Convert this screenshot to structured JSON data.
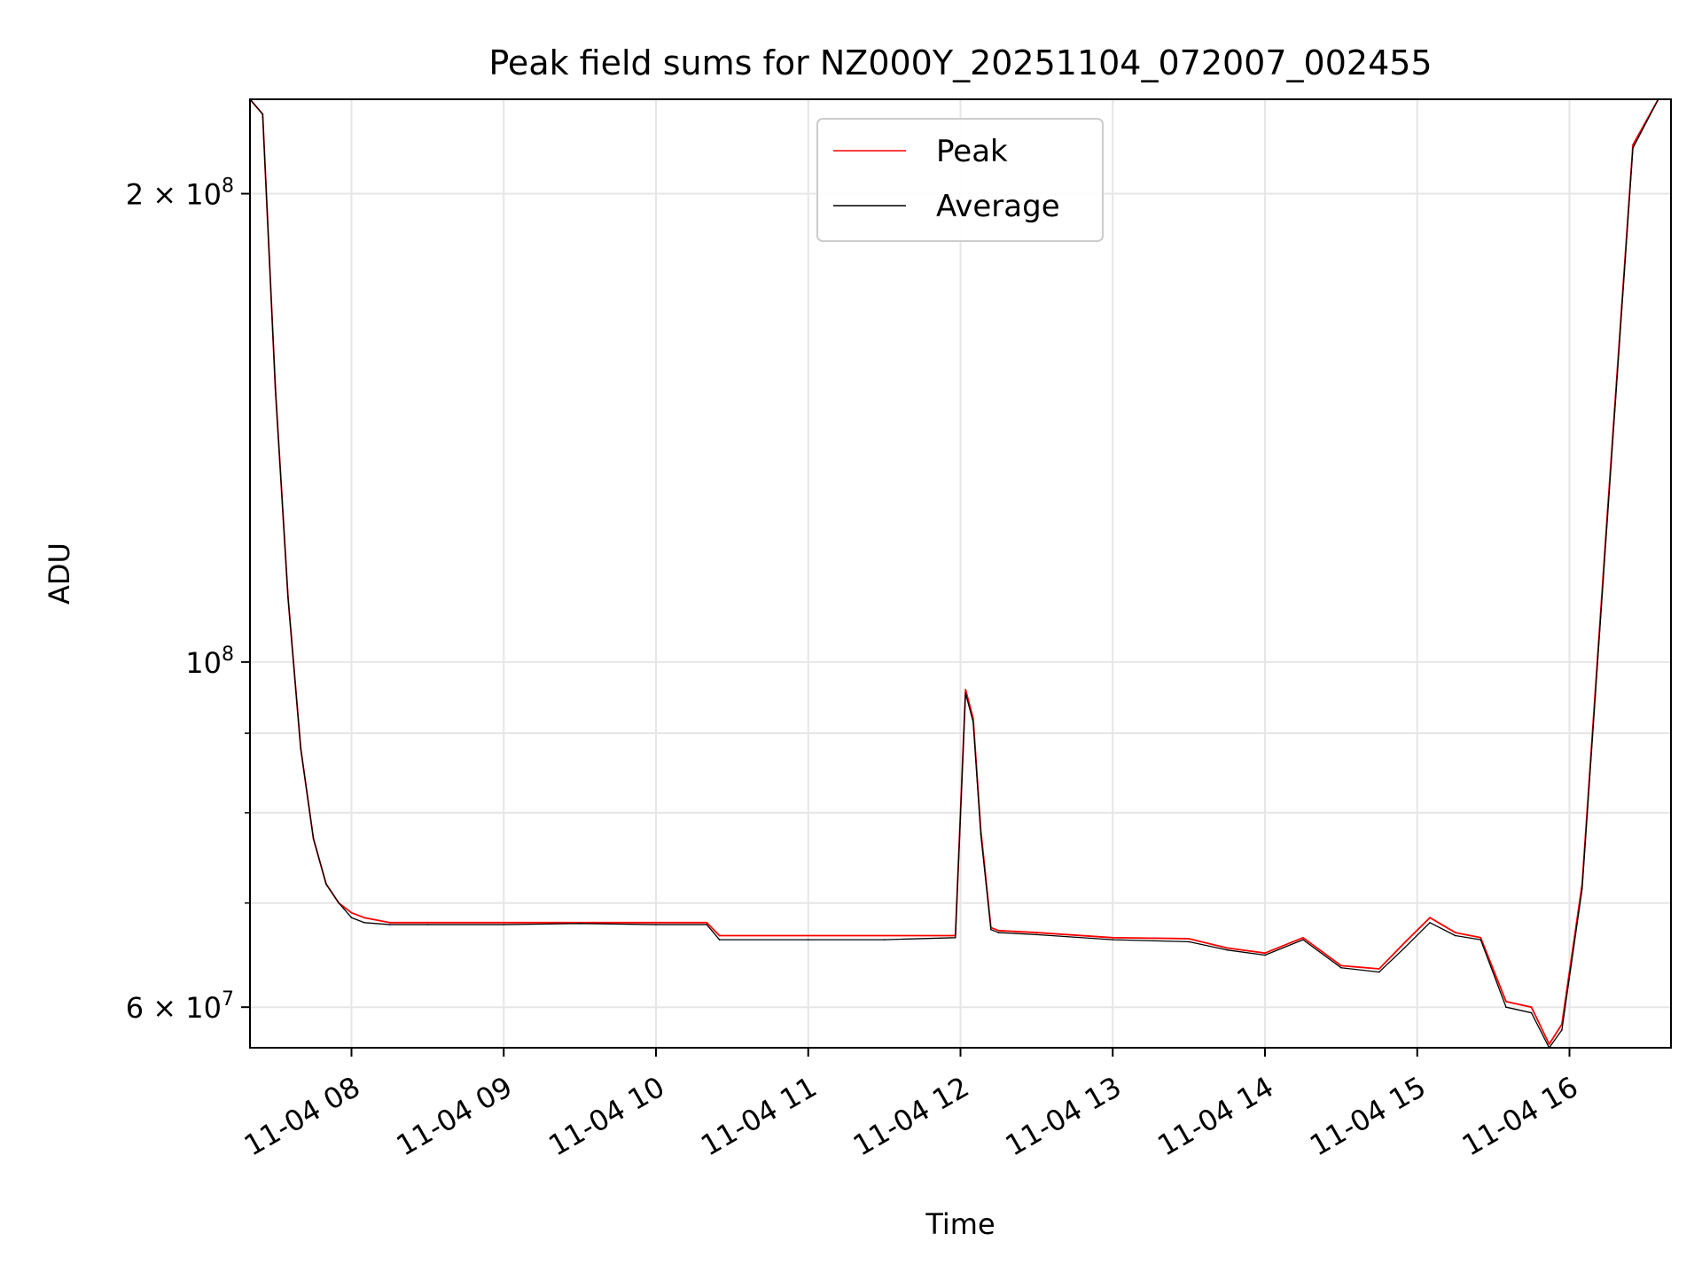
{
  "chart_data": {
    "type": "line",
    "title": "Peak field sums for NZ000Y_20251104_072007_002455",
    "xlabel": "Time",
    "ylabel": "ADU",
    "y_scale": "log",
    "x_range": [
      "2025-11-04 07:20",
      "2025-11-04 16:40"
    ],
    "ylim": [
      56500000,
      230000000
    ],
    "grid": true,
    "legend_position": "top-center",
    "x_ticks": [
      {
        "t": "2025-11-04 08:00",
        "label": "11-04 08"
      },
      {
        "t": "2025-11-04 09:00",
        "label": "11-04 09"
      },
      {
        "t": "2025-11-04 10:00",
        "label": "11-04 10"
      },
      {
        "t": "2025-11-04 11:00",
        "label": "11-04 11"
      },
      {
        "t": "2025-11-04 12:00",
        "label": "11-04 12"
      },
      {
        "t": "2025-11-04 13:00",
        "label": "11-04 13"
      },
      {
        "t": "2025-11-04 14:00",
        "label": "11-04 14"
      },
      {
        "t": "2025-11-04 15:00",
        "label": "11-04 15"
      },
      {
        "t": "2025-11-04 16:00",
        "label": "11-04 16"
      }
    ],
    "y_major_ticks": [
      {
        "value": 60000000,
        "mantissa": "6",
        "exponent": "7"
      },
      {
        "value": 100000000,
        "mantissa": "",
        "exponent": "8"
      },
      {
        "value": 200000000,
        "mantissa": "2",
        "exponent": "8"
      }
    ],
    "y_minor_ticks": [
      70000000,
      80000000,
      90000000
    ],
    "series": [
      {
        "name": "Peak",
        "color": "#ff0000",
        "x": [
          "2025-11-04 07:20",
          "2025-11-04 07:25",
          "2025-11-04 07:30",
          "2025-11-04 07:35",
          "2025-11-04 07:40",
          "2025-11-04 07:45",
          "2025-11-04 07:50",
          "2025-11-04 07:55",
          "2025-11-04 08:00",
          "2025-11-04 08:05",
          "2025-11-04 08:15",
          "2025-11-04 08:30",
          "2025-11-04 09:00",
          "2025-11-04 09:30",
          "2025-11-04 10:00",
          "2025-11-04 10:20",
          "2025-11-04 10:25",
          "2025-11-04 11:00",
          "2025-11-04 11:30",
          "2025-11-04 11:58",
          "2025-11-04 12:02",
          "2025-11-04 12:05",
          "2025-11-04 12:08",
          "2025-11-04 12:12",
          "2025-11-04 12:15",
          "2025-11-04 12:30",
          "2025-11-04 13:00",
          "2025-11-04 13:30",
          "2025-11-04 13:45",
          "2025-11-04 14:00",
          "2025-11-04 14:15",
          "2025-11-04 14:30",
          "2025-11-04 14:45",
          "2025-11-04 14:55",
          "2025-11-04 15:05",
          "2025-11-04 15:15",
          "2025-11-04 15:25",
          "2025-11-04 15:35",
          "2025-11-04 15:45",
          "2025-11-04 15:52",
          "2025-11-04 15:57",
          "2025-11-04 16:05",
          "2025-11-04 16:15",
          "2025-11-04 16:25",
          "2025-11-04 16:35",
          "2025-11-04 16:40"
        ],
        "y": [
          230000000,
          225000000,
          150000000,
          110000000,
          88000000,
          77000000,
          72000000,
          70000000,
          69000000,
          68500000,
          68000000,
          68000000,
          68000000,
          68000000,
          68000000,
          68000000,
          66700000,
          66700000,
          66700000,
          66700000,
          96000000,
          92000000,
          78000000,
          67500000,
          67200000,
          67000000,
          66500000,
          66400000,
          65500000,
          65000000,
          66500000,
          63800000,
          63500000,
          66000000,
          68500000,
          67000000,
          66500000,
          60500000,
          60000000,
          56800000,
          58500000,
          72000000,
          125000000,
          215000000,
          230000000,
          230000000
        ]
      },
      {
        "name": "Average",
        "color": "#000000",
        "x": [
          "2025-11-04 07:20",
          "2025-11-04 07:25",
          "2025-11-04 07:30",
          "2025-11-04 07:35",
          "2025-11-04 07:40",
          "2025-11-04 07:45",
          "2025-11-04 07:50",
          "2025-11-04 07:55",
          "2025-11-04 08:00",
          "2025-11-04 08:05",
          "2025-11-04 08:15",
          "2025-11-04 08:30",
          "2025-11-04 09:00",
          "2025-11-04 09:30",
          "2025-11-04 10:00",
          "2025-11-04 10:20",
          "2025-11-04 10:25",
          "2025-11-04 11:00",
          "2025-11-04 11:30",
          "2025-11-04 11:58",
          "2025-11-04 12:02",
          "2025-11-04 12:05",
          "2025-11-04 12:08",
          "2025-11-04 12:12",
          "2025-11-04 12:15",
          "2025-11-04 12:30",
          "2025-11-04 13:00",
          "2025-11-04 13:30",
          "2025-11-04 13:45",
          "2025-11-04 14:00",
          "2025-11-04 14:15",
          "2025-11-04 14:30",
          "2025-11-04 14:45",
          "2025-11-04 14:55",
          "2025-11-04 15:05",
          "2025-11-04 15:15",
          "2025-11-04 15:25",
          "2025-11-04 15:35",
          "2025-11-04 15:45",
          "2025-11-04 15:52",
          "2025-11-04 15:57",
          "2025-11-04 16:05",
          "2025-11-04 16:15",
          "2025-11-04 16:25",
          "2025-11-04 16:35",
          "2025-11-04 16:40"
        ],
        "y": [
          230000000,
          225000000,
          150000000,
          110000000,
          88000000,
          77000000,
          72000000,
          70000000,
          68500000,
          68000000,
          67800000,
          67800000,
          67800000,
          67900000,
          67800000,
          67800000,
          66300000,
          66300000,
          66300000,
          66500000,
          95500000,
          91500000,
          77500000,
          67300000,
          67000000,
          66800000,
          66300000,
          66100000,
          65300000,
          64800000,
          66300000,
          63600000,
          63200000,
          65500000,
          68000000,
          66700000,
          66300000,
          60000000,
          59500000,
          56500000,
          58000000,
          71500000,
          124000000,
          214000000,
          230000000,
          230000000
        ]
      }
    ]
  }
}
